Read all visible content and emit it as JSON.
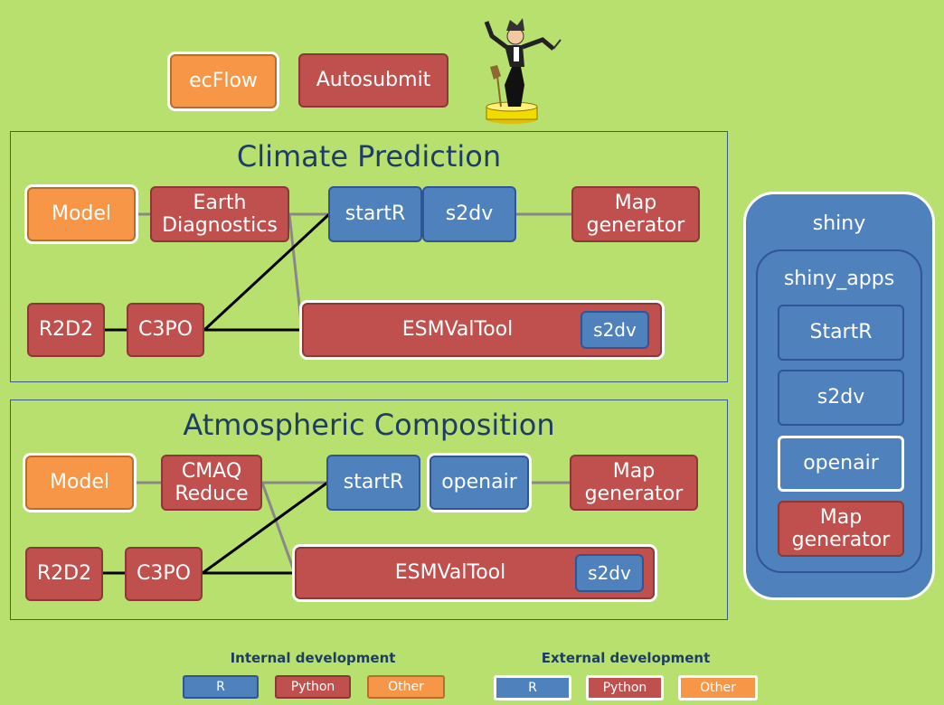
{
  "top": {
    "ecflow": "ecFlow",
    "autosubmit": "Autosubmit"
  },
  "climate": {
    "title": "Climate Prediction",
    "model": "Model",
    "earth": "Earth Diagnostics",
    "startr": "startR",
    "s2dv": "s2dv",
    "map": "Map generator",
    "r2d2": "R2D2",
    "c3po": "C3PO",
    "esmvaltool": "ESMValTool",
    "esm_s2dv": "s2dv"
  },
  "atmos": {
    "title": "Atmospheric Composition",
    "model": "Model",
    "cmaq": "CMAQ Reduce",
    "startr": "startR",
    "openair": "openair",
    "map": "Map generator",
    "r2d2": "R2D2",
    "c3po": "C3PO",
    "esmvaltool": "ESMValTool",
    "esm_s2dv": "s2dv"
  },
  "shiny": {
    "title": "shiny",
    "apps_title": "shiny_apps",
    "apps": [
      "StartR",
      "s2dv",
      "openair",
      "Map generator"
    ]
  },
  "legend": {
    "internal_title": "Internal development",
    "external_title": "External development",
    "r": "R",
    "python": "Python",
    "other": "Other"
  },
  "colors": {
    "r": "#4f81bd",
    "python": "#c0504d",
    "other": "#f79646",
    "background": "#b8e06e"
  },
  "icons": {
    "mascot": "conductor-figure-icon"
  }
}
